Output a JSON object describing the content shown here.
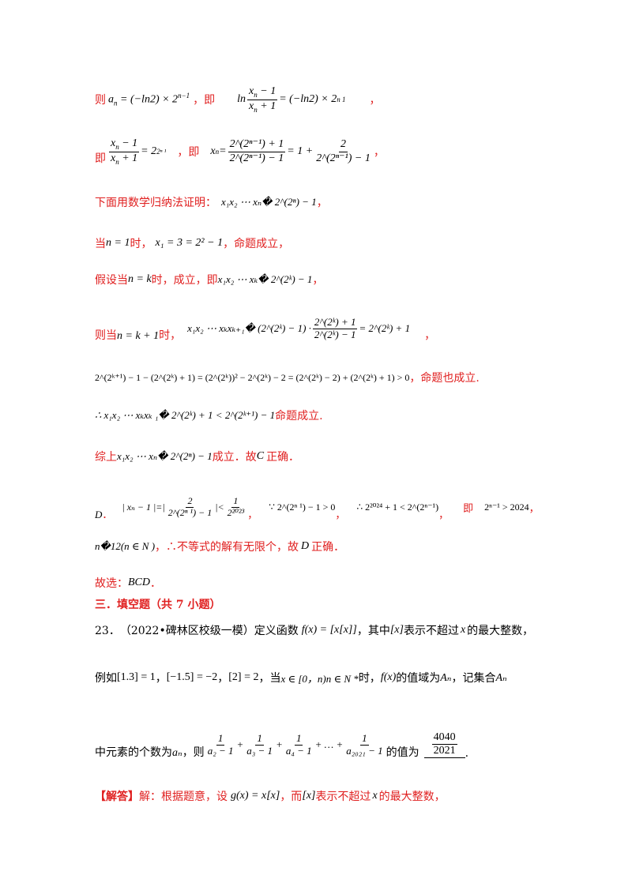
{
  "lines": {
    "l1": {
      "t1": "则",
      "m1": "a",
      "m1sub": "n",
      "m1b": " = (−ln2) × 2",
      "m1sup": "n−1",
      "t2": "，即",
      "m2pre": "ln",
      "m2num": "x",
      "m2numsub": "n",
      "m2numtail": " − 1",
      "m2den": "x",
      "m2densub": "n",
      "m2dentail": " + 1",
      "m2post": " = (−ln2) × 2",
      "m2sup": "n 1",
      "t3": "，"
    },
    "l2": {
      "t1": "即",
      "fnum": "x",
      "fnumsub": "n",
      "fnumtail": " − 1",
      "fden": "x",
      "fdensub": "n",
      "fdentail": " + 1",
      "eq": " = 2",
      "eqsup": "2ⁿ ¹",
      "t2": "，即",
      "m2": "x",
      "m2sub": "n",
      "m2eq": " = ",
      "m2num": "2^(2ⁿ⁻¹) + 1",
      "m2den": "2^(2ⁿ⁻¹) − 1",
      "m2mid": " = 1 + ",
      "m2num2": "2",
      "m2den2": "2^(2ⁿ⁻¹) − 1",
      "t3": "，"
    },
    "l3": {
      "t1": "下面用数学归纳法证明：",
      "m": "x₁x₂ ⋯ xₙ� 2^(2ⁿ) − 1",
      "t2": "，"
    },
    "l4": {
      "t1": "当",
      "m1": "n = 1",
      "t2": "时，",
      "m2": "x₁ = 3 = 2² − 1",
      "t3": "，命题成立，"
    },
    "l5": {
      "t1": "假设当",
      "m1": "n = k",
      "t2": "时，成立，即",
      "m2": "x₁x₂ ⋯ xₖ� 2^(2ᵏ) − 1",
      "t3": "，"
    },
    "l6": {
      "t1": "则当",
      "m1": "n = k + 1",
      "t2": "时，",
      "mpre": "x₁x₂ ⋯ xₖxₖ₊₁� (2^(2ᵏ) − 1) · ",
      "mnum": "2^(2ᵏ) + 1",
      "mden": "2^(2ᵏ) − 1",
      "mpost": " = 2^(2ᵏ) + 1",
      "t3": "，"
    },
    "l7": {
      "m": "2^(2ᵏ⁺¹) − 1 − (2^(2ᵏ) + 1) = (2^(2ᵏ))² − 2^(2ᵏ) − 2 = (2^(2ᵏ) − 2) + (2^(2ᵏ) + 1) > 0",
      "t1": "，命题也成立."
    },
    "l8": {
      "m": "∴ x₁x₂ ⋯ xₖxₖ ₁� 2^(2ᵏ) + 1 < 2^(2ᵏ⁺¹) − 1",
      "t1": "命题成立."
    },
    "l9": {
      "t1": "综上",
      "m1": "x₁x₂ ⋯ xₙ� 2^(2ⁿ) − 1",
      "t2": "成立．故",
      "m2": "C",
      "t3": "正确．"
    },
    "l10": {
      "m0": "D",
      "t0": "．",
      "ma": "| xₙ − 1 |=| ",
      "mnum": "2",
      "mden": "2^(2ⁿ ¹) − 1",
      "mb": " |< ",
      "mnum2": "1",
      "mden2": "2²⁰²³",
      "t1": "，",
      "mc": "∵ 2^(2ⁿ ¹) − 1 > 0",
      "t2": "，",
      "md": "∴ 2²⁰²⁴ + 1 < 2^(2ⁿ⁻¹)",
      "t3": "，",
      "t4": "即",
      "me": "2ⁿ⁻¹ > 2024",
      "t5": "，"
    },
    "l11": {
      "m": "n�12(n ∈ N )",
      "t1": "，∴不等式的解有无限个，故",
      "m2": "D",
      "t2": "正确．"
    },
    "l12": {
      "t1": "故选：",
      "m": "BCD",
      "t2": "．"
    },
    "heading": "三．填空题（共 7 小题）",
    "q23a": {
      "num": "23．",
      "t1": "（2022•碑林区校级一模）定义函数",
      "m1": "f(x) = [x[x]]",
      "t2": "，其中",
      "m2": "[x]",
      "t3": "表示不超过",
      "m3": "x",
      "t4": "的最大整数，"
    },
    "q23b": {
      "t1": "例如",
      "m1": "[1.3] = 1",
      "t2": "，",
      "m2": "[−1.5] = −2",
      "t3": "，",
      "m3": "[2] = 2",
      "t4": "，当",
      "m4": "x ∈ [0，n)n ∈ N *",
      "t5": "时，",
      "m5": "f(x)",
      "t6": "的值域为",
      "m6": "Aₙ",
      "t7": "，记集合",
      "m7": "Aₙ"
    },
    "q23c": {
      "t1": "中元素的个数为",
      "m1": "aₙ",
      "t2": "，则",
      "f1n": "1",
      "f1d": "a₂ − 1",
      "f2n": "1",
      "f2d": "a₃ − 1",
      "f3n": "1",
      "f3d": "a₄ − 1",
      "dots": " + … + ",
      "f4n": "1",
      "f4d": "a₂₀₂₁ − 1",
      "t3": "的值为",
      "ansn": "4040",
      "ansd": "2021"
    },
    "sol": {
      "tag": "【解答】",
      "t1": "解：根据题意，设",
      "m1": "g(x) = x[x]",
      "t2": "，而",
      "m2": "[x]",
      "t3": "表示不超过",
      "m3": "x",
      "t4": "的最大整数，"
    }
  }
}
